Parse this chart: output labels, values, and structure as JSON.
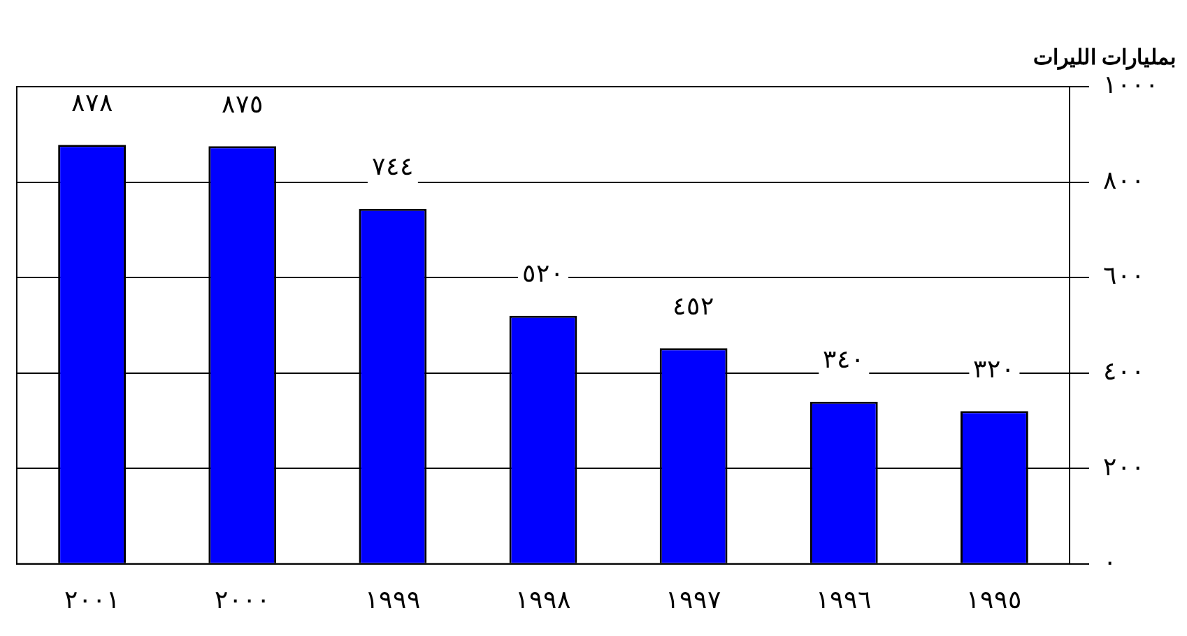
{
  "chart_data": {
    "type": "bar",
    "ylabel": "بمليارات الليرات",
    "categories": [
      "٢٠٠١",
      "٢٠٠٠",
      "١٩٩٩",
      "١٩٩٨",
      "١٩٩٧",
      "١٩٩٦",
      "١٩٩٥"
    ],
    "values": [
      878,
      875,
      744,
      520,
      452,
      340,
      320
    ],
    "value_labels": [
      "٨٧٨",
      "٨٧٥",
      "٧٤٤",
      "٥٢٠",
      "٤٥٢",
      "٣٤٠",
      "٣٢٠"
    ],
    "color": "#0000ff",
    "ylim": [
      0,
      1000
    ],
    "yticks": [
      {
        "value": 0,
        "label": "٠"
      },
      {
        "value": 200,
        "label": "٢٠٠"
      },
      {
        "value": 400,
        "label": "٤٠٠"
      },
      {
        "value": 600,
        "label": "٦٠٠"
      },
      {
        "value": 800,
        "label": "٨٠٠"
      },
      {
        "value": 1000,
        "label": "١٠٠٠"
      }
    ],
    "grid": "y",
    "legend": false
  }
}
